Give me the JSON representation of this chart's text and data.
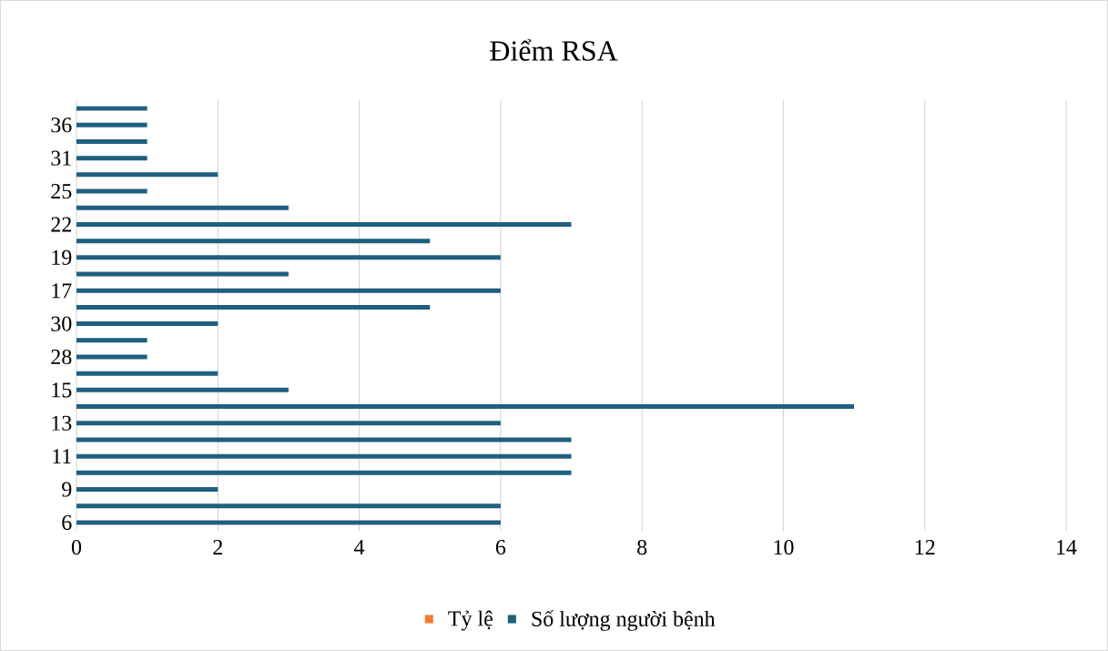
{
  "chart_data": {
    "type": "bar",
    "orientation": "horizontal",
    "title": "Điểm RSA",
    "categories": [
      null,
      "36",
      null,
      "31",
      null,
      "25",
      null,
      "22",
      null,
      "19",
      null,
      "17",
      null,
      "30",
      null,
      "28",
      null,
      "15",
      null,
      "13",
      null,
      "11",
      null,
      "9",
      null,
      "6"
    ],
    "series": [
      {
        "name": "Tỷ lệ",
        "color": "#ed7d31",
        "values": [
          null,
          null,
          null,
          null,
          null,
          null,
          null,
          null,
          null,
          null,
          null,
          null,
          null,
          null,
          null,
          null,
          null,
          null,
          null,
          null,
          null,
          null,
          null,
          null,
          null,
          null
        ]
      },
      {
        "name": "Số lượng người bệnh",
        "color": "#1f5f80",
        "values": [
          1,
          1,
          1,
          1,
          2,
          1,
          3,
          7,
          5,
          6,
          3,
          6,
          5,
          2,
          1,
          1,
          2,
          3,
          11,
          6,
          7,
          7,
          7,
          2,
          6,
          6
        ]
      }
    ],
    "xlim": [
      0,
      14
    ],
    "xticks": [
      0,
      2,
      4,
      6,
      8,
      10,
      12,
      14
    ],
    "grid": "x",
    "legend": "bottom"
  }
}
